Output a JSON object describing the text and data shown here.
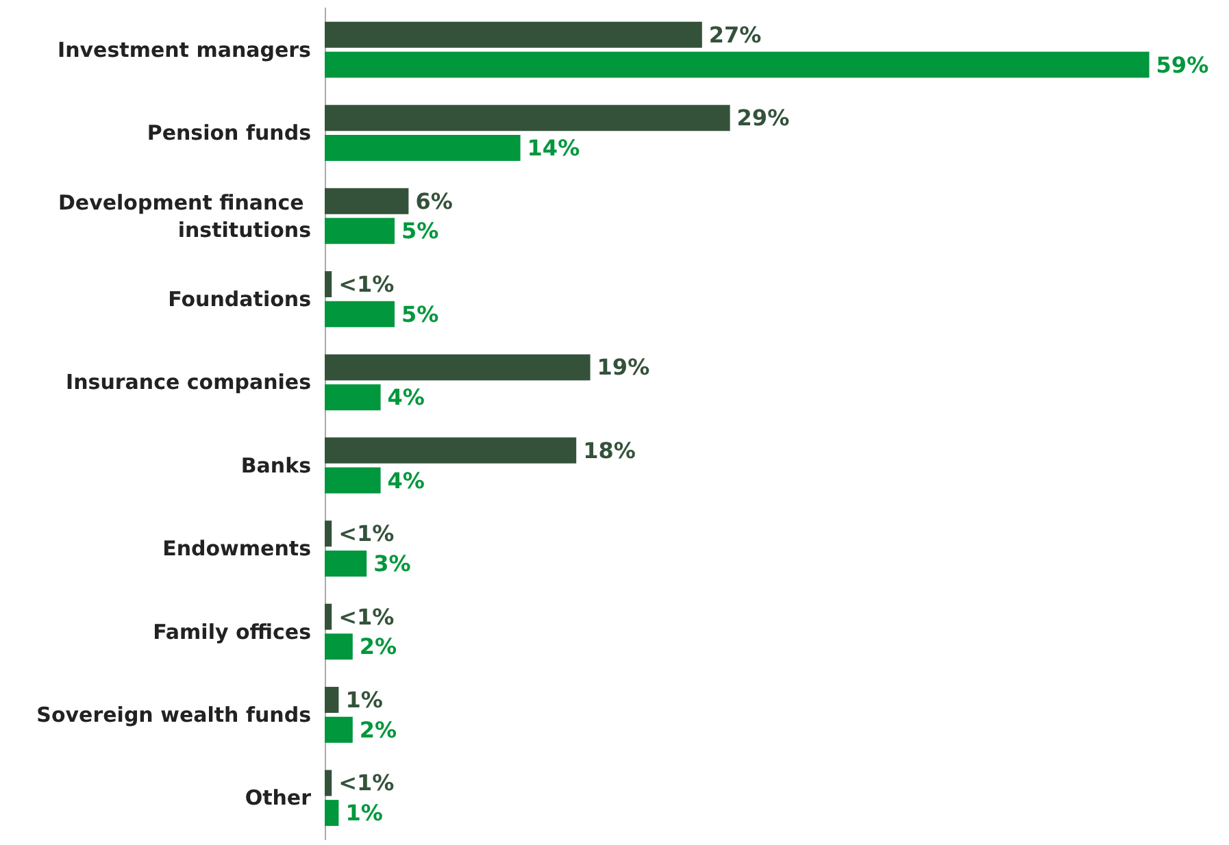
{
  "chart_data": {
    "type": "bar",
    "orientation": "horizontal",
    "categories": [
      "Investment managers",
      "Pension funds",
      "Development finance institutions",
      "Foundations",
      "Insurance companies",
      "Banks",
      "Endowments",
      "Family offices",
      "Sovereign wealth funds",
      "Other"
    ],
    "series": [
      {
        "color": "#34523a",
        "values": [
          27,
          29,
          6,
          0.5,
          19,
          18,
          0.5,
          0.5,
          1,
          0.5
        ],
        "value_labels": [
          "27%",
          "29%",
          "6%",
          "<1%",
          "19%",
          "18%",
          "<1%",
          "<1%",
          "1%",
          "<1%"
        ]
      },
      {
        "color": "#00973d",
        "values": [
          59,
          14,
          5,
          5,
          4,
          4,
          3,
          2,
          2,
          1
        ],
        "value_labels": [
          "59%",
          "14%",
          "5%",
          "5%",
          "4%",
          "4%",
          "3%",
          "2%",
          "2%",
          "1%"
        ]
      }
    ],
    "grid": false
  }
}
